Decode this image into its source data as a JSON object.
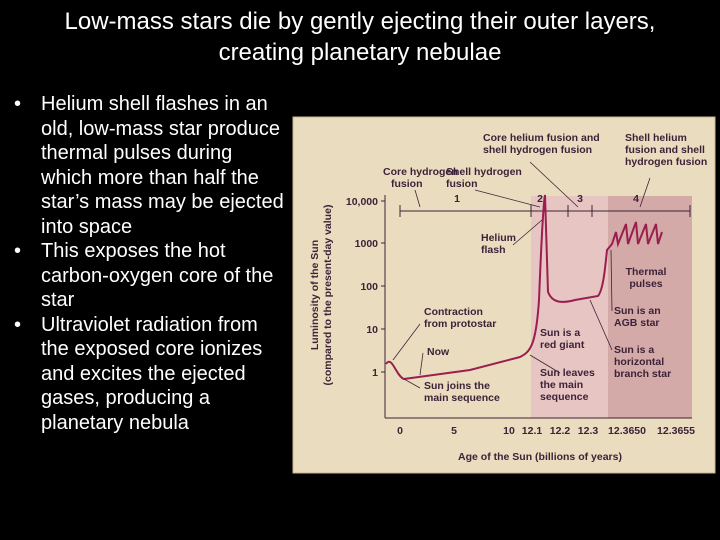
{
  "title": "Low-mass stars die by gently ejecting their outer layers, creating planetary nebulae",
  "bullets": [
    "Helium shell flashes in an old, low-mass star produce thermal pulses during which more than half the star’s mass may be ejected into space",
    "This exposes the hot carbon-oxygen core of the star",
    "Ultraviolet radiation from the exposed core ionizes and excites the ejected gases, producing a planetary nebula"
  ],
  "figure": {
    "y_axis_label": [
      "Luminosity of the Sun",
      "(compared to the present-day value)"
    ],
    "x_axis_label": "Age of the Sun (billions of years)",
    "y_ticks": [
      "10,000",
      "1000",
      "100",
      "10",
      "1"
    ],
    "x_ticks": [
      "0",
      "5",
      "10",
      "12.1",
      "12.2",
      "12.3",
      "12.3650",
      "12.3655"
    ],
    "phase_labels": [
      "1",
      "2",
      "3",
      "4"
    ],
    "annotations": [
      [
        "Core hydrogen",
        "fusion"
      ],
      [
        "Shell hydrogen",
        "fusion"
      ],
      [
        "Core helium fusion and",
        "shell hydrogen fusion"
      ],
      [
        "Shell helium",
        "fusion and shell",
        "hydrogen fusion"
      ],
      [
        "Helium",
        "flash"
      ],
      [
        "Thermal",
        "pulses"
      ],
      [
        "Sun is an",
        "AGB star"
      ],
      [
        "Contraction",
        "from protostar"
      ],
      [
        "Sun is a",
        "red giant"
      ],
      [
        "Now"
      ],
      [
        "Sun is a",
        "horizontal",
        "branch star"
      ],
      [
        "Sun joins the",
        "main sequence"
      ],
      [
        "Sun leaves",
        "the main",
        "sequence"
      ]
    ]
  }
}
